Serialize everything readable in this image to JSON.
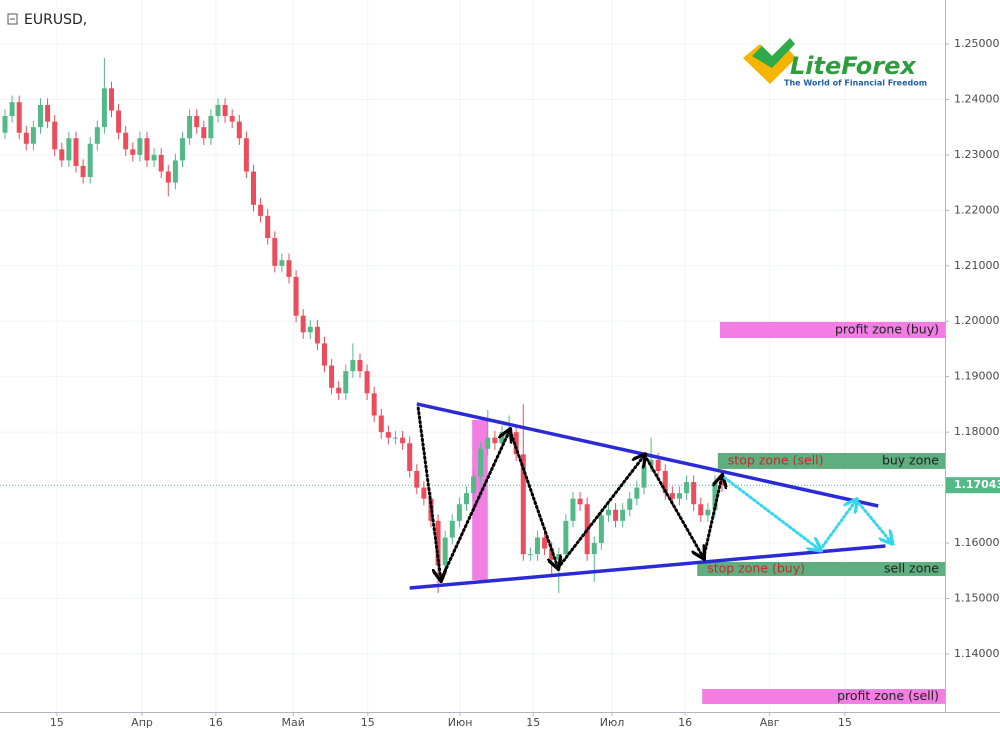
{
  "chart_data": {
    "type": "candlestick",
    "title": "EURUSD,",
    "logo": {
      "name": "LiteForex",
      "tagline": "The World of Financial Freedom"
    },
    "up_color": "#53b987",
    "down_color": "#eb4d5c",
    "grid": true,
    "xlim": [
      -0.5,
      132.4
    ],
    "ylim": [
      1.12953,
      1.25793
    ],
    "xticks": [
      {
        "value": 7.3,
        "label": "15"
      },
      {
        "value": 19.3,
        "label": "Апр"
      },
      {
        "value": 29.7,
        "label": "16"
      },
      {
        "value": 40.6,
        "label": "Май"
      },
      {
        "value": 51.1,
        "label": "15"
      },
      {
        "value": 64.1,
        "label": "Июн"
      },
      {
        "value": 74.4,
        "label": "15"
      },
      {
        "value": 85.5,
        "label": "Июл"
      },
      {
        "value": 95.8,
        "label": "16"
      },
      {
        "value": 107.7,
        "label": "Авг"
      },
      {
        "value": 118.3,
        "label": "15"
      }
    ],
    "yticks": [
      {
        "value": 1.25,
        "label": "1.25000"
      },
      {
        "value": 1.24,
        "label": "1.24000"
      },
      {
        "value": 1.23,
        "label": "1.23000"
      },
      {
        "value": 1.22,
        "label": "1.22000"
      },
      {
        "value": 1.21,
        "label": "1.21000"
      },
      {
        "value": 1.2,
        "label": "1.20000"
      },
      {
        "value": 1.19,
        "label": "1.19000"
      },
      {
        "value": 1.18,
        "label": "1.18000"
      },
      {
        "value": 1.17,
        "label": "1.17000"
      },
      {
        "value": 1.16,
        "label": "1.16000"
      },
      {
        "value": 1.15,
        "label": "1.15000"
      },
      {
        "value": 1.14,
        "label": "1.14000"
      }
    ],
    "current_price": {
      "value": 1.17043,
      "label": "1.17043",
      "color": "#53b987"
    },
    "x": [
      0,
      1,
      2,
      3,
      4,
      5,
      6,
      7,
      8,
      9,
      10,
      11,
      12,
      13,
      14,
      15,
      16,
      17,
      18,
      19,
      20,
      21,
      22,
      23,
      24,
      25,
      26,
      27,
      28,
      29,
      30,
      31,
      32,
      33,
      34,
      35,
      36,
      37,
      38,
      39,
      40,
      41,
      42,
      43,
      44,
      45,
      46,
      47,
      48,
      49,
      50,
      51,
      52,
      53,
      54,
      55,
      56,
      57,
      58,
      59,
      60,
      61,
      62,
      63,
      64,
      65,
      66,
      67,
      68,
      69,
      70,
      71,
      72,
      73,
      74,
      75,
      76,
      77,
      78,
      79,
      80,
      81,
      82,
      83,
      84,
      85,
      86,
      87,
      88,
      89,
      90,
      91,
      92,
      93,
      94,
      95,
      96,
      97,
      98,
      99,
      100,
      101
    ],
    "open": [
      1.234,
      1.237,
      1.2395,
      1.234,
      1.232,
      1.235,
      1.239,
      1.236,
      1.231,
      1.229,
      1.233,
      1.228,
      1.226,
      1.232,
      1.235,
      1.242,
      1.238,
      1.234,
      1.231,
      1.23,
      1.233,
      1.229,
      1.23,
      1.227,
      1.225,
      1.229,
      1.233,
      1.237,
      1.235,
      1.233,
      1.237,
      1.239,
      1.237,
      1.236,
      1.233,
      1.227,
      1.221,
      1.219,
      1.215,
      1.21,
      1.211,
      1.208,
      1.201,
      1.198,
      1.199,
      1.196,
      1.192,
      1.188,
      1.187,
      1.191,
      1.193,
      1.191,
      1.187,
      1.183,
      1.18,
      1.179,
      1.179,
      1.178,
      1.173,
      1.17,
      1.168,
      1.164,
      1.156,
      1.161,
      1.164,
      1.167,
      1.169,
      1.172,
      1.177,
      1.179,
      1.178,
      1.18,
      1.18,
      1.176,
      1.158,
      1.158,
      1.161,
      1.159,
      1.157,
      1.158,
      1.164,
      1.168,
      1.167,
      1.158,
      1.16,
      1.165,
      1.166,
      1.164,
      1.166,
      1.168,
      1.17,
      1.174,
      1.175,
      1.173,
      1.169,
      1.168,
      1.169,
      1.171,
      1.167,
      1.165,
      1.166,
      1.171
    ],
    "high": [
      1.2382,
      1.2407,
      1.2407,
      1.2352,
      1.2362,
      1.2402,
      1.2402,
      1.2372,
      1.2322,
      1.2342,
      1.2342,
      1.2292,
      1.2332,
      1.2362,
      1.2475,
      1.2432,
      1.2392,
      1.2352,
      1.2322,
      1.2342,
      1.2342,
      1.2312,
      1.2312,
      1.2282,
      1.2302,
      1.2342,
      1.2382,
      1.2382,
      1.2362,
      1.2382,
      1.2402,
      1.2402,
      1.2382,
      1.2372,
      1.2342,
      1.2282,
      1.2222,
      1.2202,
      1.2162,
      1.2122,
      1.2122,
      1.2092,
      1.2022,
      1.2002,
      1.2002,
      1.1972,
      1.1932,
      1.1892,
      1.1922,
      1.196,
      1.1942,
      1.1922,
      1.1882,
      1.1842,
      1.1812,
      1.1802,
      1.1802,
      1.1792,
      1.1742,
      1.1712,
      1.1692,
      1.1652,
      1.1622,
      1.1652,
      1.1682,
      1.1702,
      1.1732,
      1.1782,
      1.184,
      1.1802,
      1.1812,
      1.183,
      1.1812,
      1.185,
      1.1592,
      1.1622,
      1.1622,
      1.1602,
      1.1592,
      1.1652,
      1.1692,
      1.1692,
      1.1682,
      1.1612,
      1.1662,
      1.1672,
      1.1672,
      1.1672,
      1.1692,
      1.1712,
      1.1752,
      1.179,
      1.1762,
      1.1742,
      1.1702,
      1.1702,
      1.1722,
      1.1722,
      1.1682,
      1.1672,
      1.1722,
      1.1722
    ],
    "low": [
      1.2328,
      1.2358,
      1.2328,
      1.2308,
      1.2308,
      1.2338,
      1.2348,
      1.2298,
      1.2278,
      1.2278,
      1.2268,
      1.2248,
      1.2248,
      1.2308,
      1.2338,
      1.2368,
      1.2328,
      1.2298,
      1.2288,
      1.2288,
      1.2278,
      1.2278,
      1.2258,
      1.2225,
      1.2238,
      1.2278,
      1.2318,
      1.2338,
      1.2318,
      1.2318,
      1.2358,
      1.2358,
      1.2348,
      1.2318,
      1.2258,
      1.2198,
      1.2178,
      1.2138,
      1.2088,
      1.2088,
      1.2068,
      1.1998,
      1.1968,
      1.1968,
      1.1948,
      1.1908,
      1.1868,
      1.1858,
      1.1858,
      1.1898,
      1.1898,
      1.1858,
      1.1818,
      1.1788,
      1.1778,
      1.1778,
      1.1768,
      1.1718,
      1.1688,
      1.1668,
      1.1628,
      1.151,
      1.1548,
      1.1598,
      1.1628,
      1.1658,
      1.1678,
      1.1708,
      1.1758,
      1.1768,
      1.1768,
      1.1788,
      1.1748,
      1.1568,
      1.1568,
      1.1568,
      1.1578,
      1.1545,
      1.151,
      1.1568,
      1.1628,
      1.1658,
      1.1568,
      1.153,
      1.1588,
      1.1638,
      1.1628,
      1.1628,
      1.1648,
      1.1668,
      1.1688,
      1.1728,
      1.1718,
      1.1678,
      1.1668,
      1.1668,
      1.1678,
      1.1658,
      1.1638,
      1.1638,
      1.1648,
      1.1692
    ],
    "close": [
      1.237,
      1.2395,
      1.234,
      1.232,
      1.235,
      1.239,
      1.236,
      1.231,
      1.229,
      1.233,
      1.228,
      1.226,
      1.232,
      1.235,
      1.242,
      1.238,
      1.234,
      1.231,
      1.23,
      1.233,
      1.229,
      1.23,
      1.227,
      1.225,
      1.229,
      1.233,
      1.237,
      1.235,
      1.233,
      1.237,
      1.239,
      1.237,
      1.236,
      1.233,
      1.227,
      1.221,
      1.219,
      1.215,
      1.21,
      1.211,
      1.208,
      1.201,
      1.198,
      1.199,
      1.196,
      1.192,
      1.188,
      1.187,
      1.191,
      1.193,
      1.191,
      1.187,
      1.183,
      1.18,
      1.179,
      1.179,
      1.178,
      1.173,
      1.17,
      1.168,
      1.164,
      1.156,
      1.161,
      1.164,
      1.167,
      1.169,
      1.172,
      1.177,
      1.179,
      1.178,
      1.18,
      1.18,
      1.176,
      1.158,
      1.158,
      1.161,
      1.159,
      1.157,
      1.158,
      1.164,
      1.168,
      1.167,
      1.158,
      1.16,
      1.165,
      1.166,
      1.164,
      1.166,
      1.168,
      1.17,
      1.174,
      1.175,
      1.173,
      1.169,
      1.168,
      1.169,
      1.171,
      1.167,
      1.165,
      1.166,
      1.171,
      1.1704
    ],
    "highlights": [
      {
        "color": "#f27ee3",
        "x": [
          65.8,
          68.0
        ],
        "y": [
          1.15334,
          1.18219
        ]
      }
    ],
    "zones": [
      {
        "color": "#f27ee3",
        "x": [
          100.7,
          132.4
        ],
        "y": [
          1.19698,
          1.19987
        ],
        "labels": [
          {
            "text": "profit zone (buy)",
            "color": "#222222",
            "align": "right"
          }
        ]
      },
      {
        "color": "#5fae80",
        "x": [
          100.4,
          132.4
        ],
        "y": [
          1.17336,
          1.17624
        ],
        "labels": [
          {
            "text": "stop zone (sell)",
            "color": "#c62828",
            "align": "left"
          },
          {
            "text": "buy zone",
            "color": "#222222",
            "align": "right"
          }
        ]
      },
      {
        "color": "#5fae80",
        "x": [
          97.5,
          132.4
        ],
        "y": [
          1.15406,
          1.15658
        ],
        "labels": [
          {
            "text": "stop zone (buy)",
            "color": "#c62828",
            "align": "left"
          },
          {
            "text": "sell zone",
            "color": "#222222",
            "align": "right"
          }
        ]
      },
      {
        "color": "#f27ee3",
        "x": [
          98.2,
          132.4
        ],
        "y": [
          1.13098,
          1.13368
        ],
        "labels": [
          {
            "text": "profit zone (sell)",
            "color": "#222222",
            "align": "right"
          }
        ]
      }
    ],
    "trend_lines": [
      {
        "color": "#2b2bd6",
        "x": [
          58.0,
          123.0
        ],
        "y": [
          1.18508,
          1.16668
        ]
      },
      {
        "color": "#2b2bd6",
        "x": [
          57.0,
          124.0
        ],
        "y": [
          1.15189,
          1.15947
        ]
      }
    ],
    "paths": [
      {
        "color": "#000000",
        "x": [
          58.2,
          61.4,
          71.1,
          77.9,
          90.1,
          98.4,
          101.0
        ],
        "y": [
          1.18436,
          1.15334,
          1.18039,
          1.1555,
          1.17588,
          1.1573,
          1.17209
        ]
      },
      {
        "color": "#33d6ee",
        "x": [
          101.4,
          114.8,
          119.9,
          124.9
        ],
        "y": [
          1.17173,
          1.15875,
          1.16776,
          1.16001
        ]
      }
    ]
  }
}
